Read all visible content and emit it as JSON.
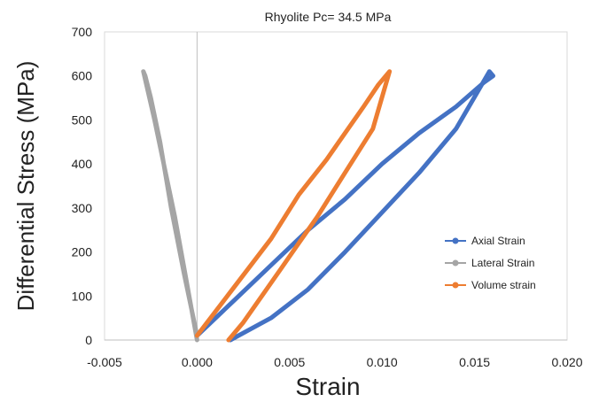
{
  "chart_data": {
    "type": "line",
    "title": "Rhyolite Pc= 34.5 MPa",
    "xlabel": "Strain",
    "ylabel": "Differential Stress (MPa)",
    "xlim": [
      -0.005,
      0.02
    ],
    "ylim": [
      0,
      700
    ],
    "xticks": [
      "-0.005",
      "0.000",
      "0.005",
      "0.010",
      "0.015",
      "0.020"
    ],
    "yticks": [
      "0",
      "100",
      "200",
      "300",
      "400",
      "500",
      "600",
      "700"
    ],
    "xtick_values": [
      -0.005,
      0,
      0.005,
      0.01,
      0.015,
      0.02
    ],
    "ytick_values": [
      0,
      100,
      200,
      300,
      400,
      500,
      600,
      700
    ],
    "grid": false,
    "legend_position": "right",
    "series": [
      {
        "name": "Axial Strain",
        "color": "#4472C4",
        "x": [
          0.0,
          0.002,
          0.004,
          0.006,
          0.008,
          0.01,
          0.012,
          0.014,
          0.0155,
          0.016,
          0.0158,
          0.014,
          0.012,
          0.01,
          0.008,
          0.006,
          0.004,
          0.0018
        ],
        "y": [
          10,
          90,
          170,
          250,
          320,
          400,
          470,
          530,
          585,
          600,
          610,
          480,
          380,
          290,
          200,
          115,
          50,
          0
        ]
      },
      {
        "name": "Lateral Strain",
        "color": "#A5A5A5",
        "x": [
          0.0,
          -0.0007,
          -0.0014,
          -0.002,
          -0.0025,
          -0.0028,
          -0.0029,
          -0.0023,
          -0.0018,
          -0.0012,
          -0.0006,
          0.0
        ],
        "y": [
          10,
          150,
          300,
          450,
          550,
          600,
          610,
          500,
          400,
          280,
          140,
          0
        ]
      },
      {
        "name": "Volume strain",
        "color": "#ED7D31",
        "x": [
          0.0,
          0.002,
          0.004,
          0.0055,
          0.007,
          0.008,
          0.009,
          0.0098,
          0.0103,
          0.0104,
          0.0095,
          0.008,
          0.0065,
          0.0055,
          0.0045,
          0.0035,
          0.0025,
          0.0017
        ],
        "y": [
          10,
          120,
          230,
          330,
          410,
          470,
          530,
          580,
          605,
          610,
          480,
          380,
          280,
          220,
          160,
          100,
          40,
          0
        ]
      }
    ]
  }
}
